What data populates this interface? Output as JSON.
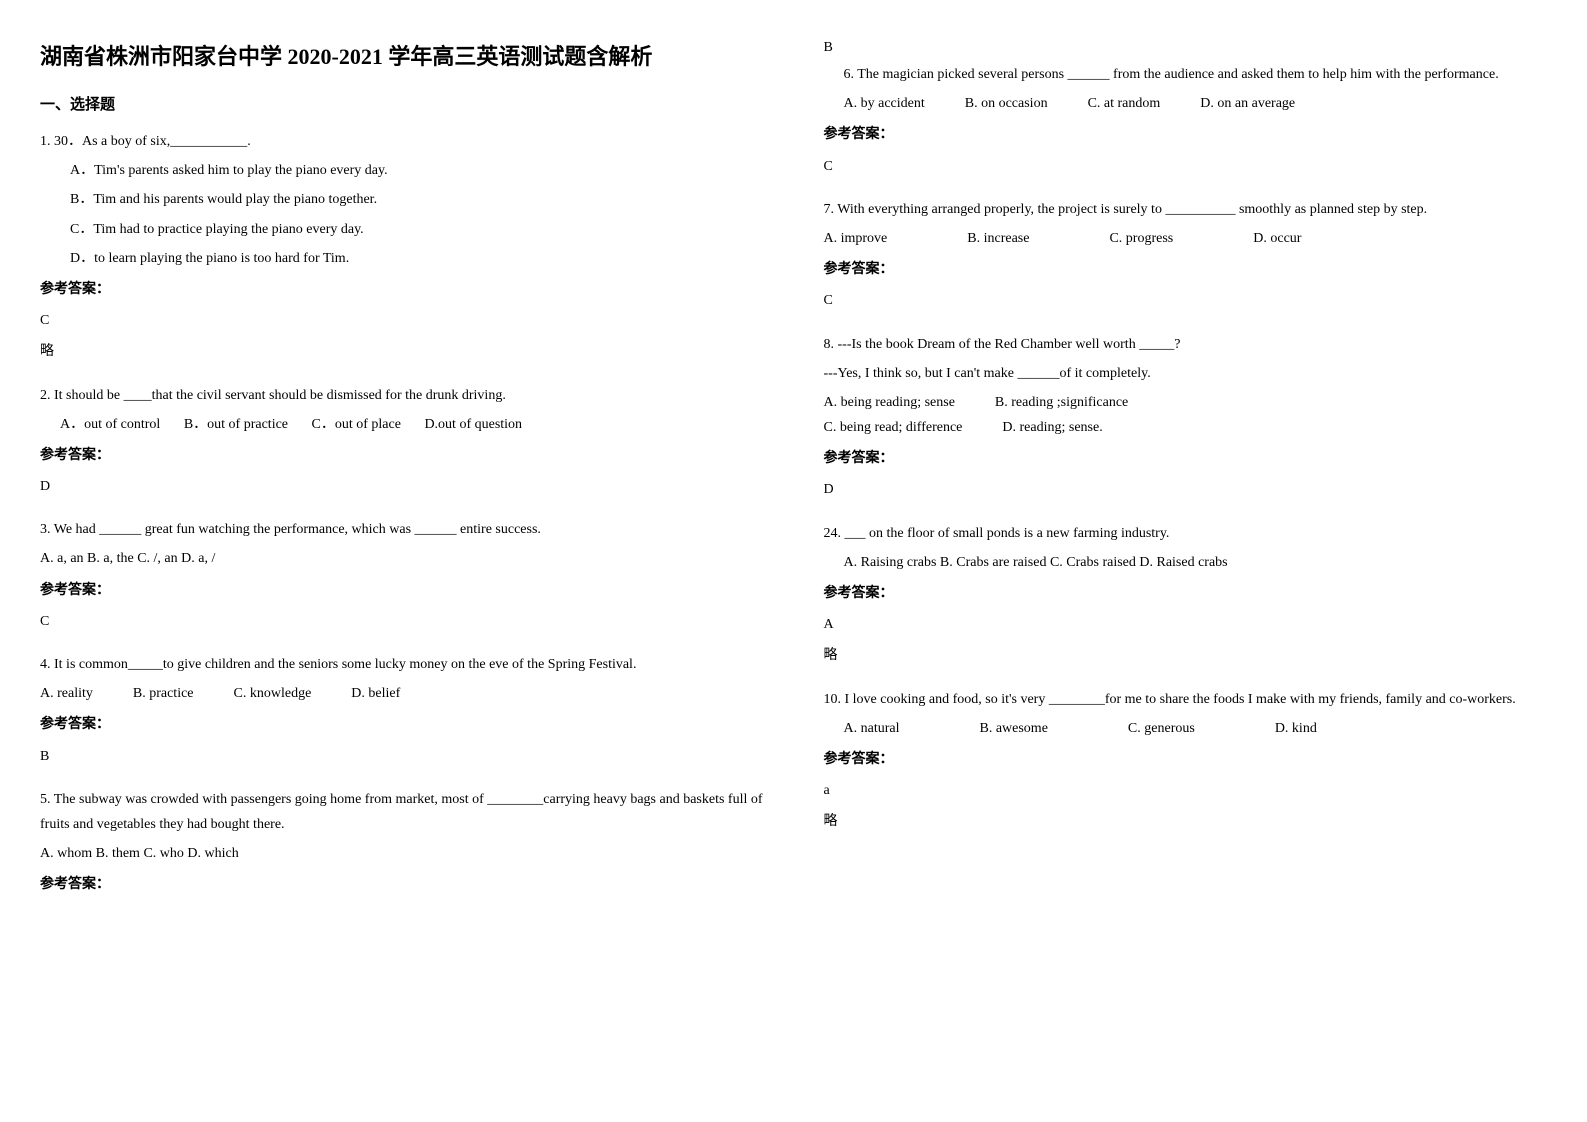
{
  "title": "湖南省株洲市阳家台中学 2020-2021 学年高三英语测试题含解析",
  "section1_header": "一、选择题",
  "q1": {
    "text": "1. 30．As a boy of six,___________.",
    "optA": "A．Tim's parents asked him to play the piano every day.",
    "optB": "B．Tim and his parents would play the piano together.",
    "optC": "C．Tim had to practice playing the piano every day.",
    "optD": "D．to learn playing the piano is too hard for Tim.",
    "answer_label": "参考答案：",
    "answer": "C",
    "note": "略"
  },
  "q2": {
    "text": "2. It should be ____that the civil servant should be dismissed for the drunk driving.",
    "optA": "A．out of control",
    "optB": "B．out of practice",
    "optC": "C．out of place",
    "optD": "D.out of question",
    "answer_label": "参考答案：",
    "answer": "D"
  },
  "q3": {
    "text": "3. We had ______ great fun watching the performance, which was ______ entire success.",
    "options": "A. a, an   B. a, the   C. /, an    D. a, /",
    "answer_label": "参考答案：",
    "answer": "C"
  },
  "q4": {
    "text": "4. It is common_____to give children and the seniors some lucky money on the eve of the Spring Festival.",
    "optA": "A. reality",
    "optB": "B. practice",
    "optC": "C. knowledge",
    "optD": "D. belief",
    "answer_label": "参考答案：",
    "answer": "B"
  },
  "q5": {
    "text": "5. The subway was crowded with passengers going home from market, most of ________carrying heavy bags and baskets full of fruits and vegetables they had bought there.",
    "options": "A. whom   B. them    C. who   D. which",
    "answer_label": "参考答案：",
    "answer": "B"
  },
  "q6": {
    "text": "6. The magician picked several persons ______ from the audience and asked them to help him with the performance.",
    "optA": "A. by accident",
    "optB": "B. on occasion",
    "optC": "C. at random",
    "optD": "D. on an average",
    "answer_label": "参考答案：",
    "answer": "C"
  },
  "q7": {
    "text": "7. With everything arranged properly, the project is surely to __________ smoothly as planned step by step.",
    "optA": "A. improve",
    "optB": "B. increase",
    "optC": "C. progress",
    "optD": "D. occur",
    "answer_label": "参考答案：",
    "answer": "C"
  },
  "q8": {
    "text1": "8. ---Is the book Dream of the Red Chamber well worth _____?",
    "text2": "---Yes, I think so, but I can't make ______of it completely.",
    "optA": "A. being reading; sense",
    "optB": "B. reading ;significance",
    "optC": "C. being read; difference",
    "optD": "D. reading;  sense.",
    "answer_label": "参考答案：",
    "answer": "D"
  },
  "q9": {
    "text": "24. ___ on the floor of small ponds is a new farming industry.",
    "options": "A. Raising crabs   B. Crabs are raised   C. Crabs raised   D. Raised crabs",
    "answer_label": "参考答案：",
    "answer": "A",
    "note": "略"
  },
  "q10": {
    "text": "10. I love cooking and food, so it's very ________for me to share the foods I make with my friends, family and co-workers.",
    "optA": "A. natural",
    "optB": "B. awesome",
    "optC": "C. generous",
    "optD": "D. kind",
    "answer_label": "参考答案：",
    "answer": "a",
    "note": "略"
  }
}
